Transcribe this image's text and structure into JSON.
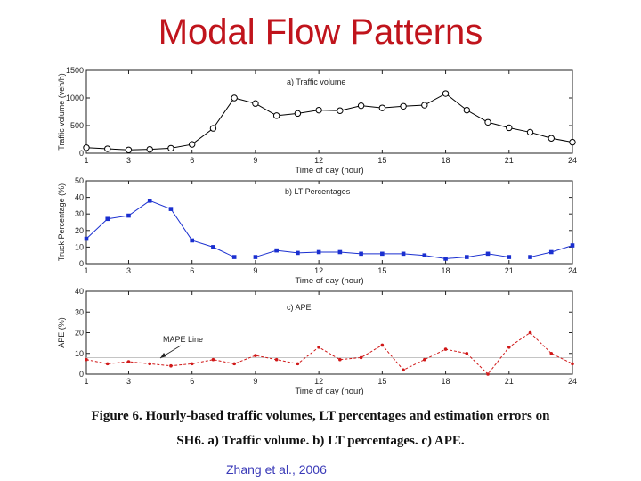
{
  "slide": {
    "title": "Modal Flow Patterns",
    "caption_line1": "Figure 6. Hourly-based traffic volumes, LT percentages and estimation errors on",
    "caption_line2": "SH6. a) Traffic volume. b) LT percentages. c) APE.",
    "credit": "Zhang et al., 2006"
  },
  "chart_data": [
    {
      "type": "line",
      "title": "a) Traffic volume",
      "xlabel": "Time of day (hour)",
      "ylabel": "Traffic volume (veh/h)",
      "xlim": [
        1,
        24
      ],
      "ylim": [
        0,
        1500
      ],
      "xticks": [
        1,
        3,
        6,
        9,
        12,
        15,
        18,
        21,
        24
      ],
      "yticks": [
        0,
        500,
        1000,
        1500
      ],
      "marker": "open-circle",
      "color": "#000000",
      "x": [
        1,
        2,
        3,
        4,
        5,
        6,
        7,
        8,
        9,
        10,
        11,
        12,
        13,
        14,
        15,
        16,
        17,
        18,
        19,
        20,
        21,
        22,
        23,
        24
      ],
      "values": [
        100,
        80,
        60,
        70,
        90,
        160,
        450,
        1000,
        900,
        680,
        720,
        780,
        770,
        860,
        820,
        850,
        870,
        1080,
        780,
        560,
        460,
        380,
        270,
        200
      ]
    },
    {
      "type": "line",
      "title": "b) LT Percentages",
      "xlabel": "Time of day (hour)",
      "ylabel": "Truck Percentage (%)",
      "xlim": [
        1,
        24
      ],
      "ylim": [
        0,
        50
      ],
      "xticks": [
        1,
        3,
        6,
        9,
        12,
        15,
        18,
        21,
        24
      ],
      "yticks": [
        0,
        10,
        20,
        30,
        40,
        50
      ],
      "marker": "filled-square",
      "color": "#1a2fd0",
      "x": [
        1,
        2,
        3,
        4,
        5,
        6,
        7,
        8,
        9,
        10,
        11,
        12,
        13,
        14,
        15,
        16,
        17,
        18,
        19,
        20,
        21,
        22,
        23,
        24
      ],
      "values": [
        15,
        27,
        29,
        38,
        33,
        14,
        10,
        4,
        4,
        8,
        6.5,
        7,
        7,
        6,
        6,
        6,
        5,
        3,
        4,
        6,
        4,
        4,
        7,
        11
      ]
    },
    {
      "type": "line",
      "title": "c) APE",
      "xlabel": "Time of day (hour)",
      "ylabel": "APE (%)",
      "xlim": [
        1,
        24
      ],
      "ylim": [
        0,
        40
      ],
      "xticks": [
        1,
        3,
        6,
        9,
        12,
        15,
        18,
        21,
        24
      ],
      "yticks": [
        0,
        10,
        20,
        30,
        40
      ],
      "marker": "filled-dot",
      "color": "#d01818",
      "line_style": "dashed",
      "annotation": "MAPE Line",
      "mape_value": 8,
      "x": [
        1,
        2,
        3,
        4,
        5,
        6,
        7,
        8,
        9,
        10,
        11,
        12,
        13,
        14,
        15,
        16,
        17,
        18,
        19,
        20,
        21,
        22,
        23,
        24
      ],
      "values": [
        7,
        5,
        6,
        5,
        4,
        5,
        7,
        5,
        9,
        7,
        5,
        13,
        7,
        8,
        14,
        2,
        7,
        12,
        10,
        0,
        13,
        20,
        10,
        5
      ]
    }
  ]
}
